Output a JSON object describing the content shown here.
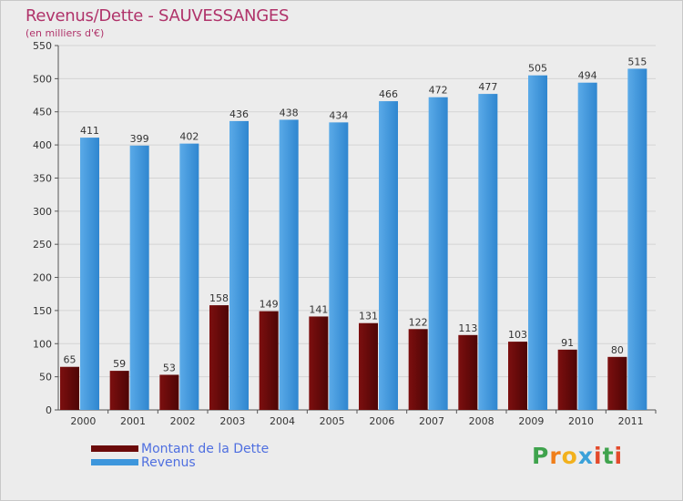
{
  "title": "Revenus/Dette - SAUVESSANGES",
  "subtitle": "(en milliers d'€)",
  "logo": {
    "letters": [
      "P",
      "r",
      "o",
      "x",
      "i",
      "t",
      "i"
    ],
    "colors": [
      "#3fa34d",
      "#f07f1a",
      "#f2b11d",
      "#3aa1d9",
      "#e34a2b",
      "#3fa34d",
      "#e34a2b"
    ]
  },
  "colors": {
    "dette": "#6b0a0a",
    "revenus": "#3d96dc",
    "title": "#b0336a",
    "legend_text": "#4f6fe0"
  },
  "chart_data": {
    "type": "bar",
    "title": "Revenus/Dette - SAUVESSANGES",
    "subtitle": "(en milliers d'€)",
    "categories": [
      "2000",
      "2001",
      "2002",
      "2003",
      "2004",
      "2005",
      "2006",
      "2007",
      "2008",
      "2009",
      "2010",
      "2011"
    ],
    "series": [
      {
        "name": "Montant de la Dette",
        "color": "#6b0a0a",
        "values": [
          65,
          59,
          53,
          158,
          149,
          141,
          131,
          122,
          113,
          103,
          91,
          80
        ]
      },
      {
        "name": "Revenus",
        "color": "#3d96dc",
        "values": [
          411,
          399,
          402,
          436,
          438,
          434,
          466,
          472,
          477,
          505,
          494,
          515
        ]
      }
    ],
    "yticks": [
      0,
      50,
      100,
      150,
      200,
      250,
      300,
      350,
      400,
      450,
      500,
      550
    ],
    "ylim": [
      0,
      550
    ],
    "grid": true,
    "legend_position": "bottom-left"
  }
}
